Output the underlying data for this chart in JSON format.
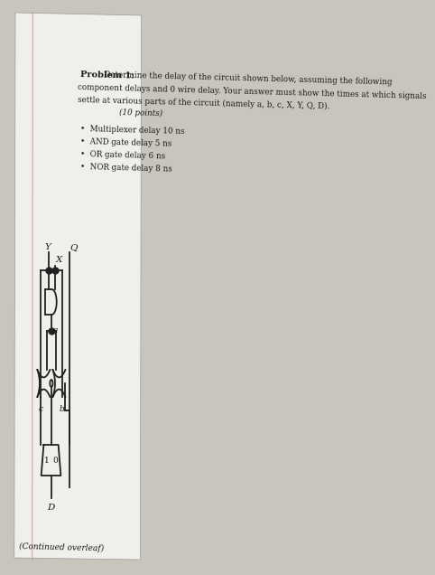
{
  "title": "Problem 1:",
  "text_line1": "Determine the delay of the circuit shown below, assuming the following",
  "text_line2": "component delays and 0 wire delay. Your answer must show the times at which signals",
  "text_line3": "settle at various parts of the circuit (namely a, b, c, X, Y, Q, D).",
  "points": "(10 points)",
  "bullets": [
    "Multiplexer delay 10 ns",
    "AND gate delay 5 ns",
    "OR gate delay 6 ns",
    "NOR gate delay 8 ns"
  ],
  "footer": "(Continued overleaf)",
  "bg_color": "#c8c5bc",
  "paper_color": "#efefeb",
  "text_color": "#1a1a1a",
  "line_color": "#222222",
  "shadow_color": "#aaaaaa"
}
